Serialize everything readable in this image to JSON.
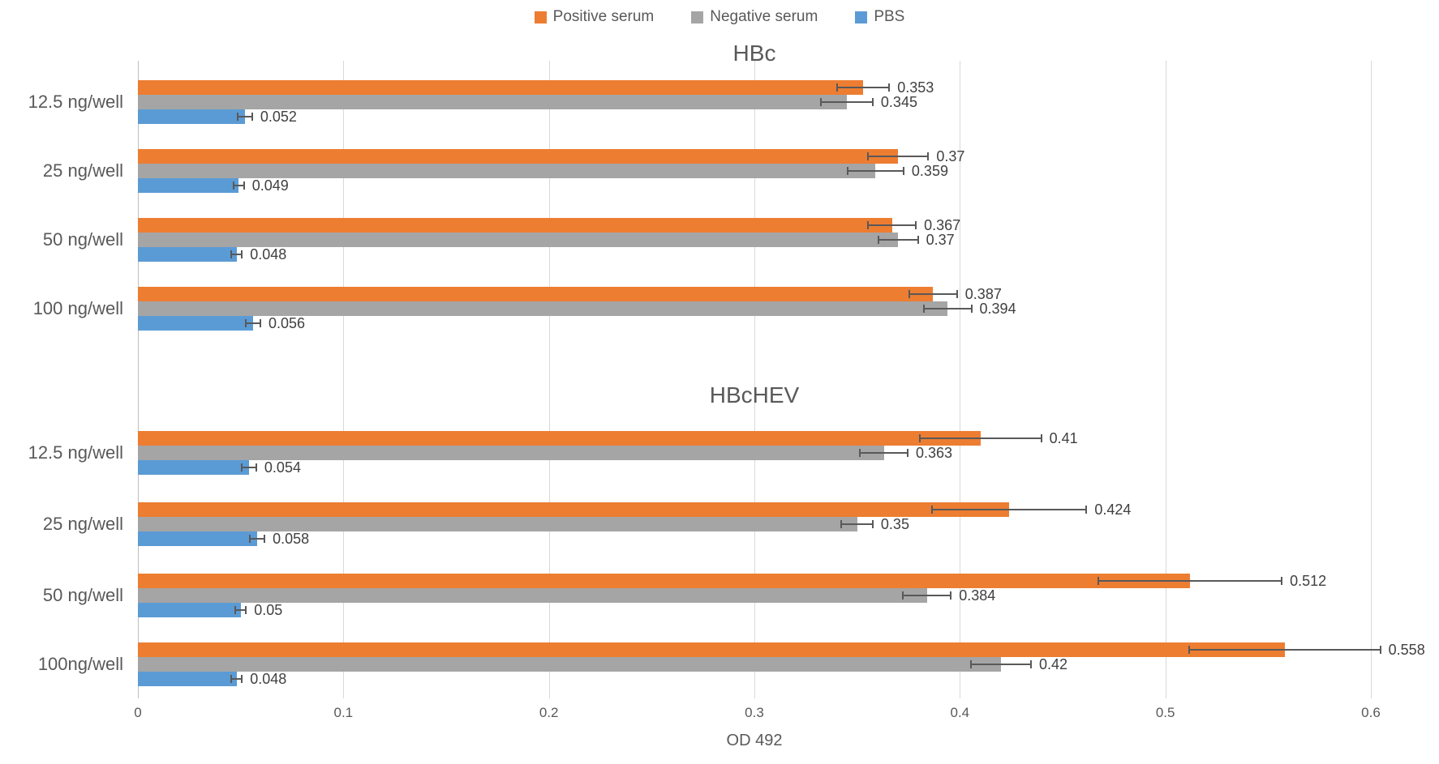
{
  "legend": {
    "items": [
      {
        "name": "positive-serum",
        "label": "Positive serum",
        "color": "#ED7D31"
      },
      {
        "name": "negative-serum",
        "label": "Negative serum",
        "color": "#A5A5A5"
      },
      {
        "name": "pbs",
        "label": "PBS",
        "color": "#5B9BD5"
      }
    ]
  },
  "axis": {
    "title": "OD 492",
    "min": 0,
    "max": 0.6,
    "ticks": [
      0,
      0.1,
      0.2,
      0.3,
      0.4,
      0.5,
      0.6
    ],
    "tick_labels": [
      "0",
      "0.1",
      "0.2",
      "0.3",
      "0.4",
      "0.5",
      "0.6"
    ],
    "grid": true
  },
  "colors": {
    "positive_serum": "#ED7D31",
    "negative_serum": "#A5A5A5",
    "pbs": "#5B9BD5",
    "gridline": "#D9D9D9",
    "error_bar": "#595959",
    "text": "#595959",
    "value_label": "#404040"
  },
  "chart_data": [
    {
      "type": "bar",
      "orientation": "horizontal",
      "title": "HBc",
      "xlabel": "OD 492",
      "xlim": [
        0,
        0.6
      ],
      "grid": true,
      "legend_position": "top",
      "categories": [
        "12.5 ng/well",
        "25 ng/well",
        "50 ng/well",
        "100 ng/well"
      ],
      "series": [
        {
          "name": "Positive serum",
          "color": "#ED7D31",
          "values": [
            0.353,
            0.37,
            0.367,
            0.387
          ],
          "labels": [
            "0.353",
            "0.37",
            "0.367",
            "0.387"
          ],
          "errors": [
            0.013,
            0.015,
            0.012,
            0.012
          ]
        },
        {
          "name": "Negative serum",
          "color": "#A5A5A5",
          "values": [
            0.345,
            0.359,
            0.37,
            0.394
          ],
          "labels": [
            "0.345",
            "0.359",
            "0.37",
            "0.394"
          ],
          "errors": [
            0.013,
            0.014,
            0.01,
            0.012
          ]
        },
        {
          "name": "PBS",
          "color": "#5B9BD5",
          "values": [
            0.052,
            0.049,
            0.048,
            0.056
          ],
          "labels": [
            "0.052",
            "0.049",
            "0.048",
            "0.056"
          ],
          "errors": [
            0.004,
            0.003,
            0.003,
            0.004
          ]
        }
      ]
    },
    {
      "type": "bar",
      "orientation": "horizontal",
      "title": "HBcHEV",
      "xlabel": "OD 492",
      "xlim": [
        0,
        0.6
      ],
      "grid": true,
      "legend_position": "top",
      "categories": [
        "12.5 ng/well",
        "25 ng/well",
        "50 ng/well",
        "100ng/well"
      ],
      "series": [
        {
          "name": "Positive serum",
          "color": "#ED7D31",
          "values": [
            0.41,
            0.424,
            0.512,
            0.558
          ],
          "labels": [
            "0.41",
            "0.424",
            "0.512",
            "0.558"
          ],
          "errors": [
            0.03,
            0.038,
            0.045,
            0.047
          ]
        },
        {
          "name": "Negative serum",
          "color": "#A5A5A5",
          "values": [
            0.363,
            0.35,
            0.384,
            0.42
          ],
          "labels": [
            "0.363",
            "0.35",
            "0.384",
            "0.42"
          ],
          "errors": [
            0.012,
            0.008,
            0.012,
            0.015
          ]
        },
        {
          "name": "PBS",
          "color": "#5B9BD5",
          "values": [
            0.054,
            0.058,
            0.05,
            0.048
          ],
          "labels": [
            "0.054",
            "0.058",
            "0.05",
            "0.048"
          ],
          "errors": [
            0.004,
            0.004,
            0.003,
            0.003
          ]
        }
      ]
    }
  ]
}
